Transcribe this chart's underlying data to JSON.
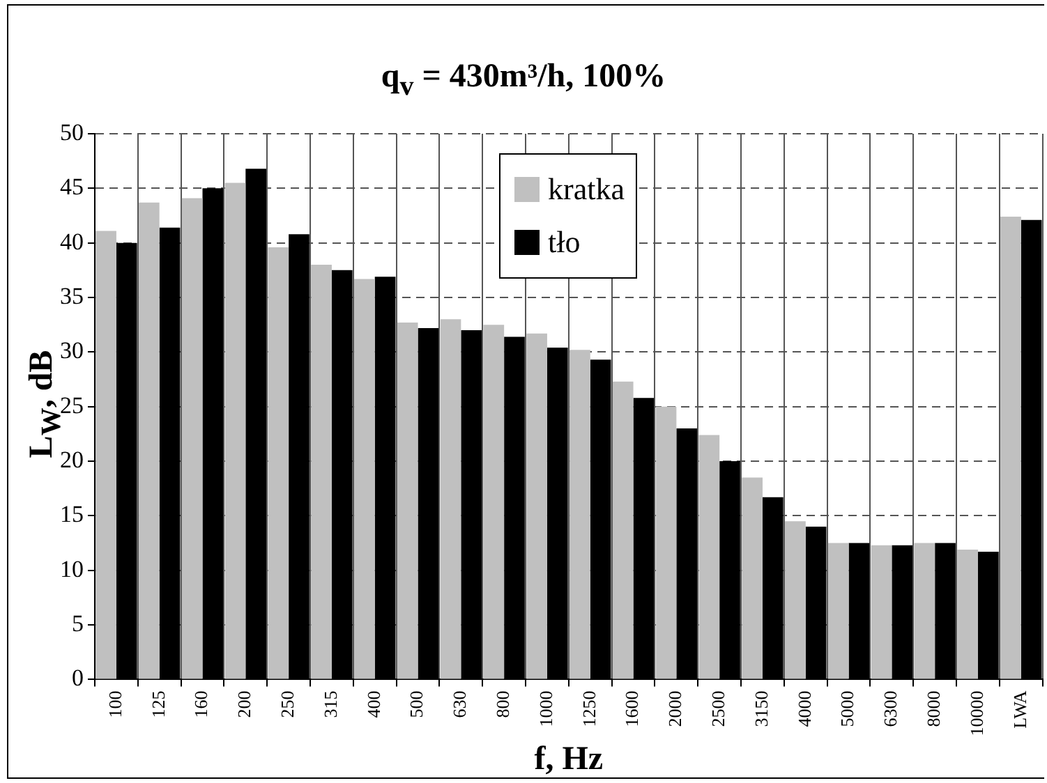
{
  "chart_data": {
    "type": "bar",
    "title": "q$_{v}$ = 430m³/h, 100%",
    "xlabel": "f, Hz",
    "ylabel": "L$_{W}$, dB",
    "categories": [
      "100",
      "125",
      "160",
      "200",
      "250",
      "315",
      "400",
      "500",
      "630",
      "800",
      "1000",
      "1250",
      "1600",
      "2000",
      "2500",
      "3150",
      "4000",
      "5000",
      "6300",
      "8000",
      "10000",
      "LWA"
    ],
    "series": [
      {
        "name": "kratka",
        "color": "#c0c0c0",
        "values": [
          41.1,
          43.7,
          44.1,
          45.5,
          39.6,
          38.0,
          36.7,
          32.7,
          33.0,
          32.5,
          31.7,
          30.2,
          27.3,
          25.0,
          22.4,
          18.5,
          14.5,
          12.5,
          12.3,
          12.5,
          11.9,
          42.4
        ]
      },
      {
        "name": "tło",
        "color": "#000000",
        "values": [
          40.0,
          41.4,
          45.0,
          46.8,
          40.8,
          37.5,
          36.9,
          32.2,
          32.0,
          31.4,
          30.4,
          29.3,
          25.8,
          23.0,
          20.0,
          16.7,
          14.0,
          12.5,
          12.3,
          12.5,
          11.7,
          42.1
        ]
      }
    ],
    "ylim": [
      0,
      50
    ],
    "yticks": [
      0,
      5,
      10,
      15,
      20,
      25,
      30,
      35,
      40,
      45,
      50
    ],
    "grid": true,
    "legend": "top center"
  }
}
